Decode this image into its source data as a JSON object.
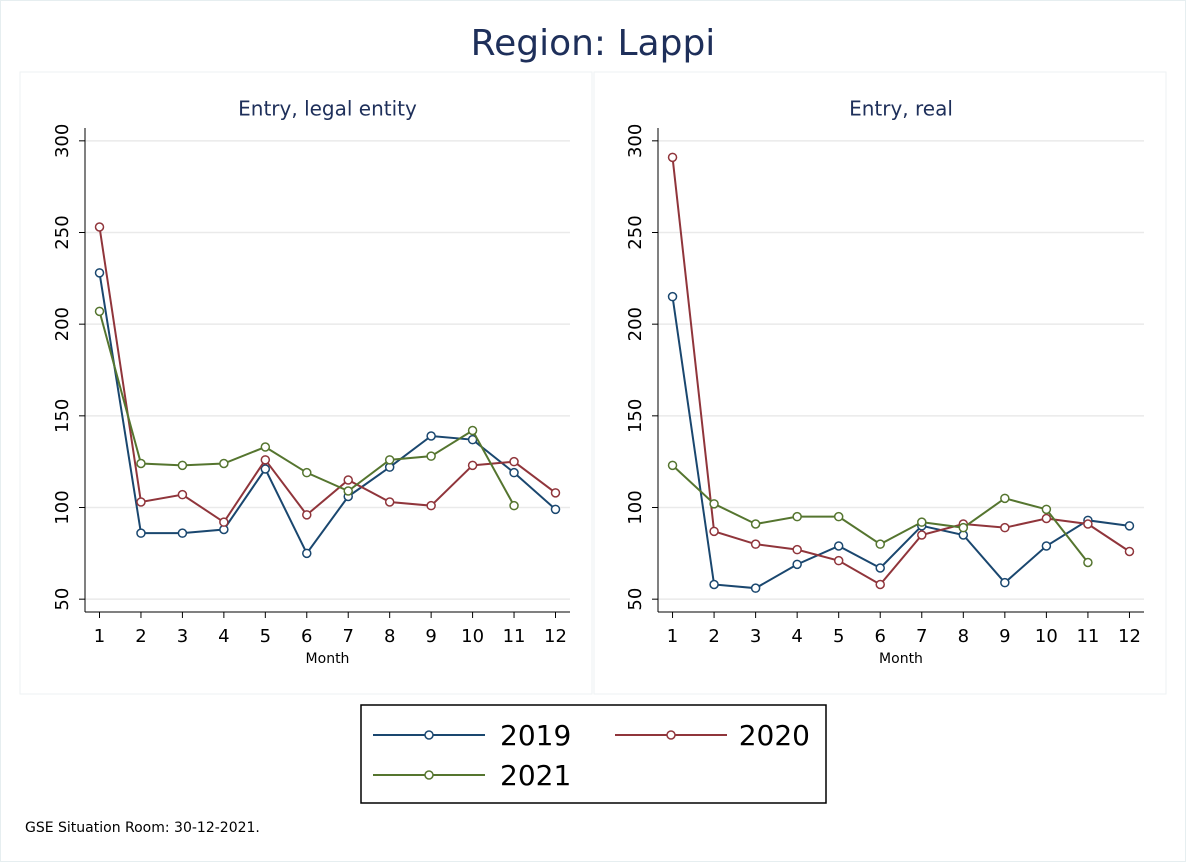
{
  "title": "Region: Lappi",
  "note": "GSE Situation Room: 30-12-2021.",
  "chart_data": [
    {
      "type": "line",
      "title": "Entry, legal entity",
      "xlabel": "Month",
      "x": [
        1,
        2,
        3,
        4,
        5,
        6,
        7,
        8,
        9,
        10,
        11,
        12
      ],
      "xlim": [
        0.65,
        12.35
      ],
      "xticks": [
        1,
        2,
        3,
        4,
        5,
        6,
        7,
        8,
        9,
        10,
        11,
        12
      ],
      "ylim": [
        43,
        307
      ],
      "yticks": [
        50,
        100,
        150,
        200,
        250,
        300
      ],
      "grid": true,
      "series": [
        {
          "name": "2019",
          "color": "#1a476f",
          "values": [
            228,
            86,
            86,
            88,
            121,
            75,
            106,
            122,
            139,
            137,
            119,
            99
          ]
        },
        {
          "name": "2020",
          "color": "#90353b",
          "values": [
            253,
            103,
            107,
            92,
            126,
            96,
            115,
            103,
            101,
            123,
            125,
            108
          ]
        },
        {
          "name": "2021",
          "color": "#55752f",
          "values": [
            207,
            124,
            123,
            124,
            133,
            119,
            109,
            126,
            128,
            142,
            101,
            null
          ]
        }
      ]
    },
    {
      "type": "line",
      "title": "Entry, real",
      "xlabel": "Month",
      "x": [
        1,
        2,
        3,
        4,
        5,
        6,
        7,
        8,
        9,
        10,
        11,
        12
      ],
      "xlim": [
        0.65,
        12.35
      ],
      "xticks": [
        1,
        2,
        3,
        4,
        5,
        6,
        7,
        8,
        9,
        10,
        11,
        12
      ],
      "ylim": [
        43,
        307
      ],
      "yticks": [
        50,
        100,
        150,
        200,
        250,
        300
      ],
      "grid": true,
      "series": [
        {
          "name": "2019",
          "color": "#1a476f",
          "values": [
            215,
            58,
            56,
            69,
            79,
            67,
            90,
            85,
            59,
            79,
            93,
            90
          ]
        },
        {
          "name": "2020",
          "color": "#90353b",
          "values": [
            291,
            87,
            80,
            77,
            71,
            58,
            85,
            91,
            89,
            94,
            91,
            76
          ]
        },
        {
          "name": "2021",
          "color": "#55752f",
          "values": [
            123,
            102,
            91,
            95,
            95,
            80,
            92,
            89,
            105,
            99,
            70,
            null
          ]
        }
      ]
    }
  ]
}
